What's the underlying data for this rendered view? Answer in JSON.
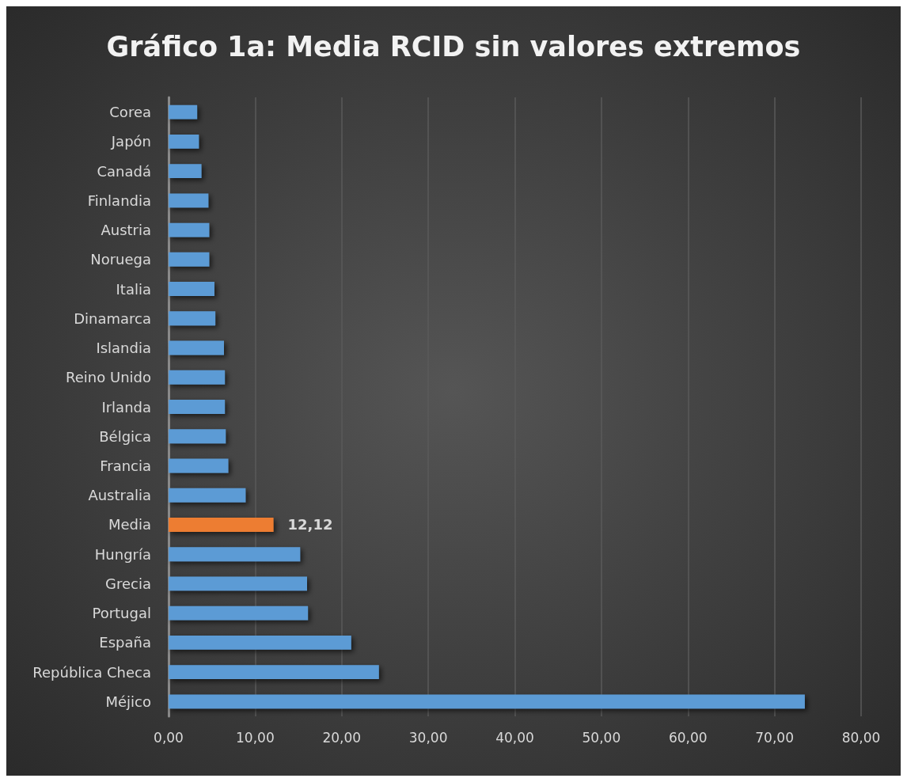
{
  "chart_data": {
    "type": "bar",
    "orientation": "horizontal",
    "title": "Gráfico 1a: Media RCID sin valores extremos",
    "categories": [
      "Corea",
      "Japón",
      "Canadá",
      "Finlandia",
      "Austria",
      "Noruega",
      "Italia",
      "Dinamarca",
      "Islandia",
      "Reino Unido",
      "Irlanda",
      "Bélgica",
      "Francia",
      "Australia",
      "Media",
      "Hungría",
      "Grecia",
      "Portugal",
      "España",
      "República Checa",
      "Méjico"
    ],
    "values": [
      3.3,
      3.5,
      3.8,
      4.6,
      4.7,
      4.7,
      5.3,
      5.4,
      6.4,
      6.5,
      6.5,
      6.6,
      6.9,
      8.9,
      12.12,
      15.2,
      16.0,
      16.1,
      21.1,
      24.3,
      73.5
    ],
    "colors": [
      "#5b9bd5",
      "#5b9bd5",
      "#5b9bd5",
      "#5b9bd5",
      "#5b9bd5",
      "#5b9bd5",
      "#5b9bd5",
      "#5b9bd5",
      "#5b9bd5",
      "#5b9bd5",
      "#5b9bd5",
      "#5b9bd5",
      "#5b9bd5",
      "#5b9bd5",
      "#ed7d31",
      "#5b9bd5",
      "#5b9bd5",
      "#5b9bd5",
      "#5b9bd5",
      "#5b9bd5",
      "#5b9bd5"
    ],
    "value_labels": [
      null,
      null,
      null,
      null,
      null,
      null,
      null,
      null,
      null,
      null,
      null,
      null,
      null,
      null,
      "12,12",
      null,
      null,
      null,
      null,
      null,
      null
    ],
    "xlim": [
      0,
      80
    ],
    "xticks": [
      {
        "value": 0,
        "label": "0,00"
      },
      {
        "value": 10,
        "label": "10,00"
      },
      {
        "value": 20,
        "label": "20,00"
      },
      {
        "value": 30,
        "label": "30,00"
      },
      {
        "value": 40,
        "label": "40,00"
      },
      {
        "value": 50,
        "label": "50,00"
      },
      {
        "value": 60,
        "label": "60,00"
      },
      {
        "value": 70,
        "label": "70,00"
      },
      {
        "value": 80,
        "label": "80,00"
      }
    ],
    "grid": "x"
  }
}
